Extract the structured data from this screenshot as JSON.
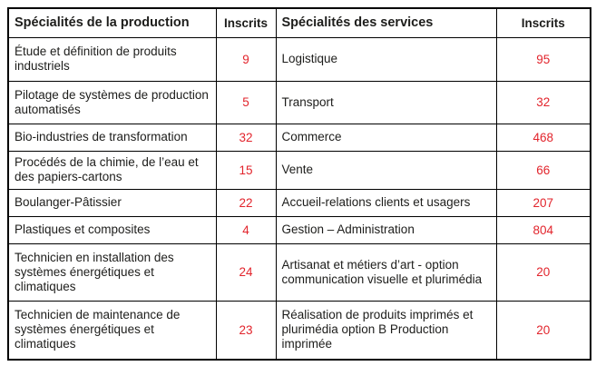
{
  "table": {
    "header": {
      "production": "Spécialités de la production",
      "production_inscrits": "Inscrits",
      "services": "Spécialités des services",
      "services_inscrits": "Inscrits"
    },
    "rows": [
      {
        "production": {
          "label": "Étude et définition de produits industriels",
          "inscrits": "9"
        },
        "services": {
          "label": "Logistique",
          "inscrits": "95"
        }
      },
      {
        "production": {
          "label": "Pilotage de systèmes de production automatisés",
          "inscrits": "5"
        },
        "services": {
          "label": "Transport",
          "inscrits": "32"
        }
      },
      {
        "production": {
          "label": "Bio-industries de transformation",
          "inscrits": "32"
        },
        "services": {
          "label": "Commerce",
          "inscrits": "468"
        }
      },
      {
        "production": {
          "label": "Procédés de la chimie, de l’eau et des papiers-cartons",
          "inscrits": "15"
        },
        "services": {
          "label": "Vente",
          "inscrits": "66"
        }
      },
      {
        "production": {
          "label": "Boulanger-Pâtissier",
          "inscrits": "22"
        },
        "services": {
          "label": "Accueil-relations clients et usagers",
          "inscrits": "207"
        }
      },
      {
        "production": {
          "label": "Plastiques et composites",
          "inscrits": "4"
        },
        "services": {
          "label": "Gestion – Administration",
          "inscrits": "804"
        }
      },
      {
        "production": {
          "label": "Technicien en installation des systèmes énergétiques et climatiques",
          "inscrits": "24"
        },
        "services": {
          "label": "Artisanat et métiers d’art - option communication visuelle et plurimédia",
          "inscrits": "20"
        }
      },
      {
        "production": {
          "label": "Technicien de maintenance de systèmes énergétiques et climatiques",
          "inscrits": "23"
        },
        "services": {
          "label": "Réalisation de produits imprimés et plurimédia option B Production imprimée",
          "inscrits": "20"
        }
      }
    ]
  },
  "colors": {
    "inscrits_red": "#e2242c",
    "text": "#1d1d1b",
    "border": "#000000"
  }
}
